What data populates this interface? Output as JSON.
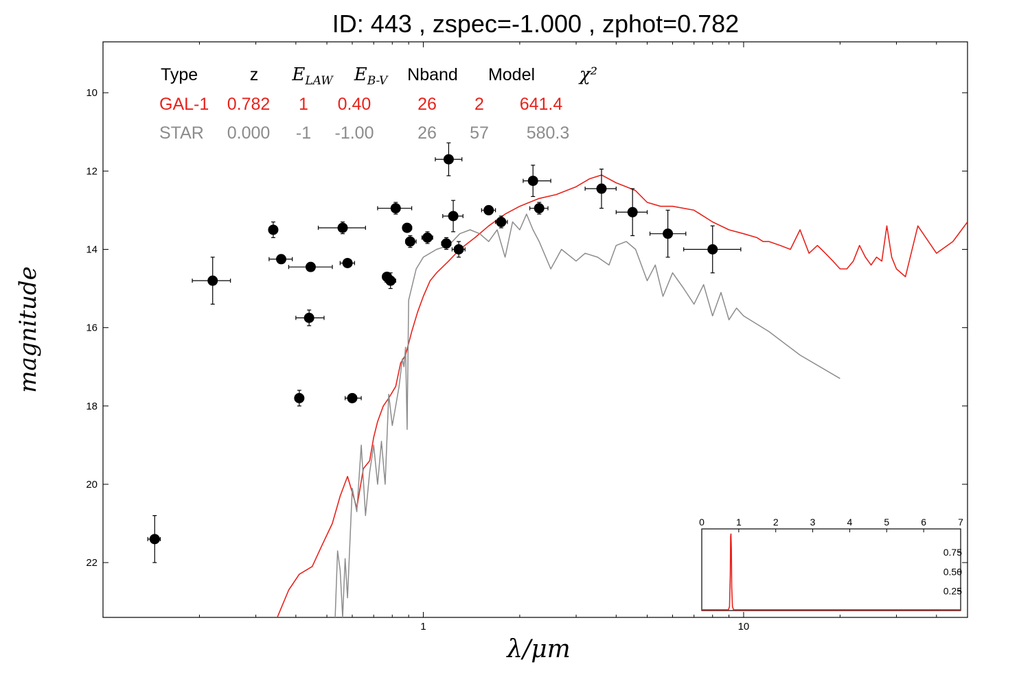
{
  "title": "ID:  443   , zspec=-1.000 , zphot=0.782",
  "colors": {
    "galaxy": "#e8221b",
    "star": "#8c8c8c",
    "points": "#000000",
    "frame": "#000000"
  },
  "legend": {
    "headers": [
      "Type",
      "z",
      "E_LAW",
      "E_B-V",
      "Nband",
      "Model",
      "χ²"
    ],
    "rows": [
      {
        "series": "galaxy",
        "values": [
          "GAL-1",
          "0.782",
          "1",
          "0.40",
          "26",
          "2",
          "641.4"
        ]
      },
      {
        "series": "star",
        "values": [
          "STAR",
          "0.000",
          "-1",
          "-1.00",
          "26",
          "57",
          "580.3"
        ]
      }
    ]
  },
  "chart_data": [
    {
      "type": "scatter",
      "title": "",
      "xlabel": "λ/μm",
      "ylabel": "magnitude",
      "xscale": "log",
      "xlim": [
        0.1,
        50
      ],
      "ylim": [
        23.4,
        8.7
      ],
      "yaxis_inverted": true,
      "x_ticks": [
        1,
        10
      ],
      "x_tick_labels": [
        "1",
        "10"
      ],
      "y_ticks": [
        10,
        12,
        14,
        16,
        18,
        20,
        22
      ],
      "y_tick_labels": [
        "10",
        "12",
        "14",
        "16",
        "18",
        "20",
        "22"
      ],
      "grid": false,
      "series": [
        {
          "name": "GAL-1",
          "type": "line",
          "color": "#e8221b",
          "x": [
            0.35,
            0.38,
            0.41,
            0.45,
            0.48,
            0.52,
            0.55,
            0.58,
            0.62,
            0.65,
            0.68,
            0.7,
            0.72,
            0.75,
            0.78,
            0.82,
            0.85,
            0.88,
            0.92,
            0.96,
            1.0,
            1.05,
            1.1,
            1.2,
            1.3,
            1.45,
            1.6,
            1.8,
            2.0,
            2.3,
            2.6,
            3.0,
            3.3,
            3.6,
            4.0,
            4.3,
            4.6,
            5.0,
            5.5,
            6.0,
            7.0,
            8.0,
            9.0,
            10.0,
            11.0,
            11.5,
            12.0,
            13.0,
            14.0,
            15.0,
            16.0,
            17.0,
            17.5,
            18.0,
            19.0,
            20.0,
            21.0,
            22.0,
            23.0,
            24.0,
            25.0,
            26.0,
            27.0,
            28.0,
            29.0,
            30.0,
            32.0,
            35.0,
            40.0,
            45.0,
            50.0
          ],
          "y": [
            23.4,
            22.7,
            22.3,
            22.1,
            21.6,
            21.0,
            20.3,
            19.8,
            20.6,
            19.6,
            19.4,
            18.8,
            18.4,
            18.0,
            17.8,
            17.5,
            16.9,
            16.7,
            16.1,
            15.6,
            15.2,
            14.8,
            14.6,
            14.3,
            14.0,
            13.7,
            13.4,
            13.1,
            12.9,
            12.7,
            12.6,
            12.4,
            12.2,
            12.1,
            12.3,
            12.4,
            12.5,
            12.8,
            12.9,
            12.9,
            13.0,
            13.3,
            13.5,
            13.6,
            13.7,
            13.8,
            13.8,
            13.9,
            14.0,
            13.5,
            14.1,
            13.9,
            14.0,
            14.1,
            14.3,
            14.5,
            14.5,
            14.3,
            13.9,
            14.2,
            14.4,
            14.2,
            14.3,
            13.4,
            14.2,
            14.5,
            14.7,
            13.4,
            14.1,
            13.8,
            13.3
          ]
        },
        {
          "name": "STAR",
          "type": "line",
          "color": "#8c8c8c",
          "x": [
            0.53,
            0.54,
            0.55,
            0.56,
            0.57,
            0.58,
            0.6,
            0.62,
            0.64,
            0.66,
            0.68,
            0.7,
            0.72,
            0.74,
            0.76,
            0.78,
            0.8,
            0.82,
            0.84,
            0.86,
            0.87,
            0.88,
            0.89,
            0.9,
            0.95,
            1.0,
            1.1,
            1.2,
            1.3,
            1.4,
            1.5,
            1.6,
            1.7,
            1.8,
            1.9,
            2.0,
            2.1,
            2.2,
            2.3,
            2.5,
            2.7,
            3.0,
            3.2,
            3.5,
            3.8,
            4.0,
            4.3,
            4.6,
            5.0,
            5.3,
            5.6,
            6.0,
            6.5,
            7.0,
            7.5,
            8.0,
            8.5,
            9.0,
            9.5,
            10.0,
            12.0,
            15.0,
            20.0
          ],
          "y": [
            23.5,
            21.7,
            22.2,
            23.4,
            21.9,
            22.9,
            20.1,
            20.7,
            19.0,
            20.8,
            19.7,
            19.0,
            20.0,
            18.9,
            20.0,
            17.7,
            18.5,
            18.0,
            17.5,
            16.8,
            17.0,
            16.5,
            18.6,
            15.3,
            14.5,
            14.2,
            14.0,
            13.9,
            13.6,
            13.5,
            13.6,
            13.8,
            13.5,
            14.2,
            13.3,
            13.5,
            13.1,
            13.5,
            13.8,
            14.5,
            14.0,
            14.3,
            14.1,
            14.2,
            14.4,
            13.9,
            13.8,
            14.0,
            14.8,
            14.4,
            15.2,
            14.6,
            15.0,
            15.4,
            14.9,
            15.7,
            15.1,
            15.8,
            15.5,
            15.7,
            16.1,
            16.7,
            17.3
          ]
        },
        {
          "name": "observed",
          "type": "scatter",
          "color": "#000000",
          "points": [
            {
              "x": 0.145,
              "y": 21.4,
              "xerr": [
                0.138,
                0.151
              ],
              "yerr": 0.6
            },
            {
              "x": 0.22,
              "y": 14.8,
              "xerr": [
                0.19,
                0.25
              ],
              "yerr": 0.6
            },
            {
              "x": 0.34,
              "y": 13.5,
              "xerr": [
                0.33,
                0.35
              ],
              "yerr": 0.2
            },
            {
              "x": 0.36,
              "y": 14.25,
              "xerr": [
                0.33,
                0.39
              ],
              "yerr": 0.08
            },
            {
              "x": 0.41,
              "y": 17.8,
              "xerr": [
                0.4,
                0.42
              ],
              "yerr": 0.2
            },
            {
              "x": 0.44,
              "y": 15.75,
              "xerr": [
                0.4,
                0.49
              ],
              "yerr": 0.2
            },
            {
              "x": 0.445,
              "y": 14.45,
              "xerr": [
                0.38,
                0.52
              ],
              "yerr": 0.08
            },
            {
              "x": 0.56,
              "y": 13.45,
              "xerr": [
                0.47,
                0.66
              ],
              "yerr": 0.15
            },
            {
              "x": 0.58,
              "y": 14.35,
              "xerr": [
                0.55,
                0.61
              ],
              "yerr": 0.05
            },
            {
              "x": 0.6,
              "y": 17.8,
              "xerr": [
                0.57,
                0.64
              ],
              "yerr": 0.08
            },
            {
              "x": 0.77,
              "y": 14.7,
              "xerr": [
                0.75,
                0.79
              ],
              "yerr": 0.1
            },
            {
              "x": 0.79,
              "y": 14.8,
              "xerr": [
                0.76,
                0.82
              ],
              "yerr": 0.2
            },
            {
              "x": 0.82,
              "y": 12.95,
              "xerr": [
                0.72,
                0.92
              ],
              "yerr": 0.15
            },
            {
              "x": 0.89,
              "y": 13.45,
              "xerr": [
                0.87,
                0.92
              ],
              "yerr": 0.1
            },
            {
              "x": 0.91,
              "y": 13.8,
              "xerr": [
                0.88,
                0.95
              ],
              "yerr": 0.15
            },
            {
              "x": 1.03,
              "y": 13.7,
              "xerr": [
                0.99,
                1.07
              ],
              "yerr": 0.15
            },
            {
              "x": 1.18,
              "y": 13.85,
              "xerr": [
                1.14,
                1.22
              ],
              "yerr": 0.15
            },
            {
              "x": 1.2,
              "y": 11.7,
              "xerr": [
                1.09,
                1.32
              ],
              "yerr": 0.42
            },
            {
              "x": 1.24,
              "y": 13.15,
              "xerr": [
                1.15,
                1.33
              ],
              "yerr": 0.4
            },
            {
              "x": 1.29,
              "y": 14.0,
              "xerr": [
                1.23,
                1.35
              ],
              "yerr": 0.2
            },
            {
              "x": 1.6,
              "y": 13.0,
              "xerr": [
                1.52,
                1.68
              ],
              "yerr": 0.1
            },
            {
              "x": 1.75,
              "y": 13.3,
              "xerr": [
                1.68,
                1.83
              ],
              "yerr": 0.15
            },
            {
              "x": 2.2,
              "y": 12.25,
              "xerr": [
                2.05,
                2.5
              ],
              "yerr": 0.4
            },
            {
              "x": 2.3,
              "y": 12.95,
              "xerr": [
                2.15,
                2.45
              ],
              "yerr": 0.15
            },
            {
              "x": 3.6,
              "y": 12.45,
              "xerr": [
                3.2,
                4.0
              ],
              "yerr": 0.5
            },
            {
              "x": 4.5,
              "y": 13.05,
              "xerr": [
                4.0,
                5.0
              ],
              "yerr": 0.6
            },
            {
              "x": 5.8,
              "y": 13.6,
              "xerr": [
                5.1,
                6.6
              ],
              "yerr": 0.6
            },
            {
              "x": 8.0,
              "y": 14.0,
              "xerr": [
                6.5,
                9.8
              ],
              "yerr": 0.6
            }
          ]
        }
      ]
    },
    {
      "type": "line",
      "title": "",
      "xlabel": "",
      "ylabel": "",
      "xlim": [
        0,
        7
      ],
      "ylim": [
        0,
        1.05
      ],
      "x_ticks": [
        0,
        1,
        2,
        3,
        4,
        5,
        6,
        7
      ],
      "x_tick_labels": [
        "0",
        "1",
        "2",
        "3",
        "4",
        "5",
        "6",
        "7"
      ],
      "y_ticks": [
        0.25,
        0.5,
        0.75
      ],
      "y_tick_labels": [
        "0.25",
        "0.50",
        "0.75"
      ],
      "x_tick_position": "top",
      "y_tick_position": "right",
      "series": [
        {
          "color": "#e8221b",
          "x": [
            0,
            0.72,
            0.75,
            0.77,
            0.78,
            0.79,
            0.8,
            0.81,
            0.83,
            0.86,
            7
          ],
          "y": [
            0.01,
            0.01,
            0.05,
            0.45,
            0.95,
            0.99,
            0.8,
            0.3,
            0.05,
            0.01,
            0.01
          ]
        }
      ]
    }
  ]
}
